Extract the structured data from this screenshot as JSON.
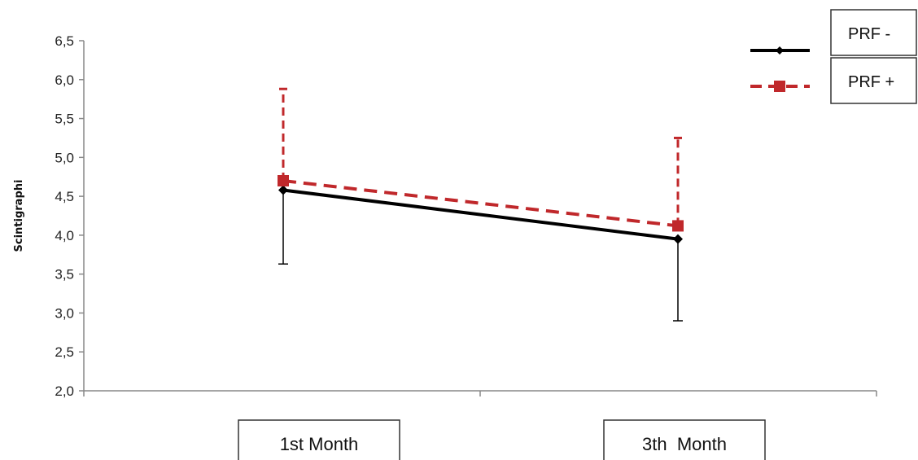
{
  "chart_data": {
    "type": "line",
    "title": "",
    "xlabel": "",
    "ylabel": "Scintigraphi",
    "categories": [
      "1st Month",
      "3th  Month"
    ],
    "ylim": [
      2.0,
      6.5
    ],
    "yticks": [
      "2,0",
      "2,5",
      "3,0",
      "3,5",
      "4,0",
      "4,5",
      "5,0",
      "5,5",
      "6,0",
      "6,5"
    ],
    "ytick_values": [
      2.0,
      2.5,
      3.0,
      3.5,
      4.0,
      4.5,
      5.0,
      5.5,
      6.0,
      6.5
    ],
    "grid": false,
    "legend_position": "top-right",
    "series": [
      {
        "name": "PRF -",
        "values": [
          4.58,
          3.95
        ],
        "error_low": [
          3.63,
          2.9
        ],
        "color": "#000000",
        "line_style": "solid",
        "marker": "diamond"
      },
      {
        "name": "PRF +",
        "values": [
          4.7,
          4.12
        ],
        "error_high": [
          5.88,
          5.25
        ],
        "color": "#c0282b",
        "line_style": "dashed",
        "marker": "square"
      }
    ]
  }
}
